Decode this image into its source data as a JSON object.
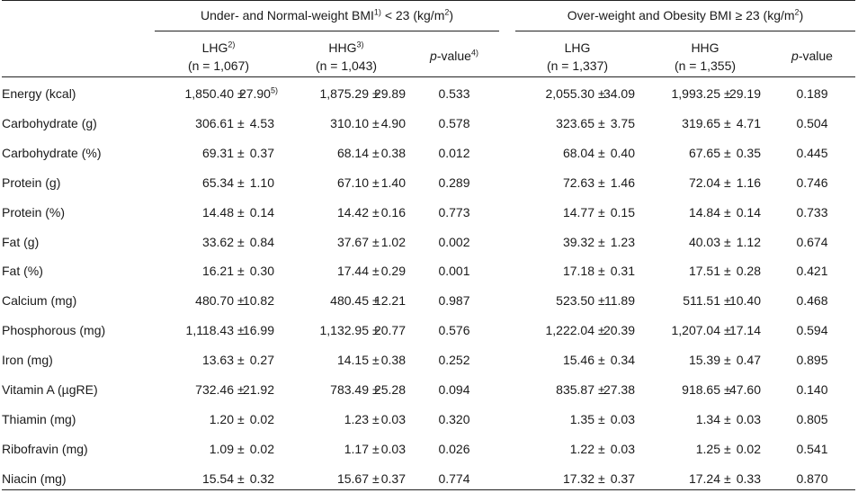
{
  "header": {
    "group_left": {
      "text": "Under- and Normal-weight BMI",
      "sup": "1)",
      "rest": " < 23 (kg/m",
      "sup2": "2",
      "close": ")"
    },
    "group_right": {
      "text": "Over-weight and Obesity BMI ≥ 23 (kg/m",
      "sup": "2",
      "close": ")"
    },
    "cols": [
      {
        "name": "LHG",
        "sup": "2)",
        "n": "(n = 1,067)"
      },
      {
        "name": "HHG",
        "sup": "3)",
        "n": "(n = 1,043)"
      },
      {
        "pname": "p",
        "prest": "-value",
        "sup": "4)"
      },
      {
        "name": "LHG",
        "n": "(n = 1,337)"
      },
      {
        "name": "HHG",
        "n": "(n = 1,355)"
      },
      {
        "pname": "p",
        "prest": "-value"
      }
    ]
  },
  "rows": [
    {
      "label": "Energy (kcal)",
      "lhg1_mean": "1,850.40",
      "lhg1_se": "27.90",
      "lhg1_sup": "5)",
      "hhg1_mean": "1,875.29",
      "hhg1_se": "29.89",
      "p1": "0.533",
      "lhg2_mean": "2,055.30",
      "lhg2_se": "34.09",
      "hhg2_mean": "1,993.25",
      "hhg2_se": "29.19",
      "p2": "0.189"
    },
    {
      "label": "Carbohydrate (g)",
      "lhg1_mean": "306.61",
      "lhg1_se": "4.53",
      "hhg1_mean": "310.10",
      "hhg1_se": "4.90",
      "p1": "0.578",
      "lhg2_mean": "323.65",
      "lhg2_se": "3.75",
      "hhg2_mean": "319.65",
      "hhg2_se": "4.71",
      "p2": "0.504"
    },
    {
      "label": "Carbohydrate (%)",
      "lhg1_mean": "69.31",
      "lhg1_se": "0.37",
      "hhg1_mean": "68.14",
      "hhg1_se": "0.38",
      "p1": "0.012",
      "lhg2_mean": "68.04",
      "lhg2_se": "0.40",
      "hhg2_mean": "67.65",
      "hhg2_se": "0.35",
      "p2": "0.445"
    },
    {
      "label": "Protein (g)",
      "lhg1_mean": "65.34",
      "lhg1_se": "1.10",
      "hhg1_mean": "67.10",
      "hhg1_se": "1.40",
      "p1": "0.289",
      "lhg2_mean": "72.63",
      "lhg2_se": "1.46",
      "hhg2_mean": "72.04",
      "hhg2_se": "1.16",
      "p2": "0.746"
    },
    {
      "label": "Protein (%)",
      "lhg1_mean": "14.48",
      "lhg1_se": "0.14",
      "hhg1_mean": "14.42",
      "hhg1_se": "0.16",
      "p1": "0.773",
      "lhg2_mean": "14.77",
      "lhg2_se": "0.15",
      "hhg2_mean": "14.84",
      "hhg2_se": "0.14",
      "p2": "0.733"
    },
    {
      "label": "Fat (g)",
      "lhg1_mean": "33.62",
      "lhg1_se": "0.84",
      "hhg1_mean": "37.67",
      "hhg1_se": "1.02",
      "p1": "0.002",
      "lhg2_mean": "39.32",
      "lhg2_se": "1.23",
      "hhg2_mean": "40.03",
      "hhg2_se": "1.12",
      "p2": "0.674"
    },
    {
      "label": "Fat (%)",
      "lhg1_mean": "16.21",
      "lhg1_se": "0.30",
      "hhg1_mean": "17.44",
      "hhg1_se": "0.29",
      "p1": "0.001",
      "lhg2_mean": "17.18",
      "lhg2_se": "0.31",
      "hhg2_mean": "17.51",
      "hhg2_se": "0.28",
      "p2": "0.421"
    },
    {
      "label": "Calcium (mg)",
      "lhg1_mean": "480.70",
      "lhg1_se": "10.82",
      "hhg1_mean": "480.45",
      "hhg1_se": "12.21",
      "p1": "0.987",
      "lhg2_mean": "523.50",
      "lhg2_se": "11.89",
      "hhg2_mean": "511.51",
      "hhg2_se": "10.40",
      "p2": "0.468"
    },
    {
      "label": "Phosphorous (mg)",
      "lhg1_mean": "1,118.43",
      "lhg1_se": "16.99",
      "hhg1_mean": "1,132.95",
      "hhg1_se": "20.77",
      "p1": "0.576",
      "lhg2_mean": "1,222.04",
      "lhg2_se": "20.39",
      "hhg2_mean": "1,207.04",
      "hhg2_se": "17.14",
      "p2": "0.594"
    },
    {
      "label": "Iron (mg)",
      "lhg1_mean": "13.63",
      "lhg1_se": "0.27",
      "hhg1_mean": "14.15",
      "hhg1_se": "0.38",
      "p1": "0.252",
      "lhg2_mean": "15.46",
      "lhg2_se": "0.34",
      "hhg2_mean": "15.39",
      "hhg2_se": "0.47",
      "p2": "0.895"
    },
    {
      "label": "Vitamin A (µgRE)",
      "lhg1_mean": "732.46",
      "lhg1_se": "21.92",
      "hhg1_mean": "783.49",
      "hhg1_se": "25.28",
      "p1": "0.094",
      "lhg2_mean": "835.87",
      "lhg2_se": "27.38",
      "hhg2_mean": "918.65",
      "hhg2_se": "47.60",
      "p2": "0.140"
    },
    {
      "label": "Thiamin (mg)",
      "lhg1_mean": "1.20",
      "lhg1_se": "0.02",
      "hhg1_mean": "1.23",
      "hhg1_se": "0.03",
      "p1": "0.320",
      "lhg2_mean": "1.35",
      "lhg2_se": "0.03",
      "hhg2_mean": "1.34",
      "hhg2_se": "0.03",
      "p2": "0.805"
    },
    {
      "label": "Ribofravin (mg)",
      "lhg1_mean": "1.09",
      "lhg1_se": "0.02",
      "hhg1_mean": "1.17",
      "hhg1_se": "0.03",
      "p1": "0.026",
      "lhg2_mean": "1.22",
      "lhg2_se": "0.03",
      "hhg2_mean": "1.25",
      "hhg2_se": "0.02",
      "p2": "0.541"
    },
    {
      "label": "Niacin (mg)",
      "lhg1_mean": "15.54",
      "lhg1_se": "0.32",
      "hhg1_mean": "15.67",
      "hhg1_se": "0.37",
      "p1": "0.774",
      "lhg2_mean": "17.32",
      "lhg2_se": "0.37",
      "hhg2_mean": "17.24",
      "hhg2_se": "0.33",
      "p2": "0.870"
    }
  ],
  "pm_sign": "±"
}
